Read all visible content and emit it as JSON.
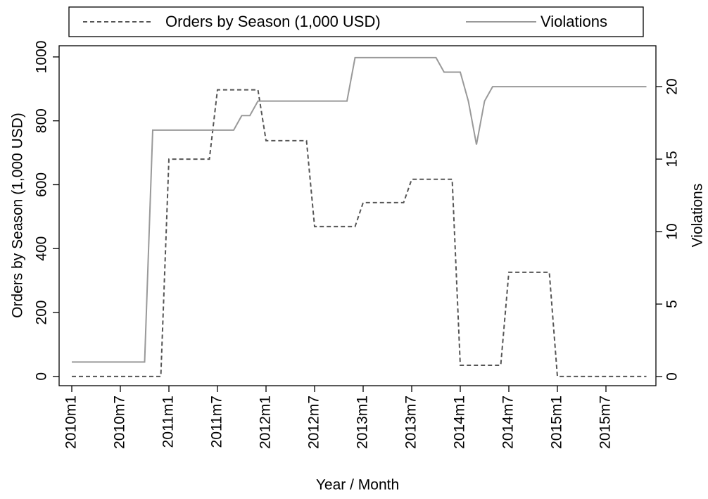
{
  "chart_data": {
    "type": "line",
    "x_label": "Year / Month",
    "y_label": "Orders by Season (1,000 USD)",
    "y2_label": "Violations",
    "categories": [
      "2010m1",
      null,
      null,
      null,
      null,
      null,
      "2010m7",
      null,
      null,
      null,
      null,
      null,
      "2011m1",
      null,
      null,
      null,
      null,
      null,
      "2011m7",
      null,
      null,
      null,
      null,
      null,
      "2012m1",
      null,
      null,
      null,
      null,
      null,
      "2012m7",
      null,
      null,
      null,
      null,
      null,
      "2013m1",
      null,
      null,
      null,
      null,
      null,
      "2013m7",
      null,
      null,
      null,
      null,
      null,
      "2014m1",
      null,
      null,
      null,
      null,
      null,
      "2014m7",
      null,
      null,
      null,
      null,
      null,
      "2015m1",
      null,
      null,
      null,
      null,
      null,
      "2015m7",
      null,
      null,
      null,
      null,
      null
    ],
    "series": [
      {
        "name": "Orders by Season (1,000 USD)",
        "color": "#555555",
        "dashed": true,
        "values": [
          0,
          0,
          0,
          0,
          0,
          0,
          0,
          0,
          0,
          0,
          0,
          0,
          680,
          680,
          680,
          680,
          680,
          680,
          897,
          897,
          897,
          897,
          897,
          897,
          738,
          738,
          738,
          738,
          738,
          738,
          469,
          469,
          469,
          469,
          469,
          469,
          544,
          544,
          544,
          544,
          544,
          544,
          617,
          617,
          617,
          617,
          617,
          617,
          35,
          35,
          35,
          35,
          35,
          35,
          326,
          326,
          326,
          326,
          326,
          326,
          0,
          0,
          0,
          0,
          0,
          0,
          0,
          0,
          0,
          0,
          0,
          0
        ]
      },
      {
        "name": "Violations",
        "color": "#999999",
        "dashed": false,
        "axis": "y2",
        "values": [
          1,
          1,
          1,
          1,
          1,
          1,
          1,
          1,
          1,
          1,
          17,
          17,
          17,
          17,
          17,
          17,
          17,
          17,
          17,
          17,
          17,
          18,
          18,
          19,
          19,
          19,
          19,
          19,
          19,
          19,
          19,
          19,
          19,
          19,
          19,
          22,
          22,
          22,
          22,
          22,
          22,
          22,
          22,
          22,
          22,
          22,
          21,
          21,
          21,
          19,
          16,
          19,
          20,
          20,
          20,
          20,
          20,
          20,
          20,
          20,
          20,
          20,
          20,
          20,
          20,
          20,
          20,
          20,
          20,
          20,
          20,
          20
        ]
      }
    ],
    "ylim": [
      -29,
      1035
    ],
    "yticks": [
      0,
      200,
      400,
      600,
      800,
      1000
    ],
    "y2lim": [
      -0.63,
      22.82
    ],
    "y2ticks": [
      0,
      5,
      10,
      15,
      20
    ],
    "legend": "top"
  }
}
